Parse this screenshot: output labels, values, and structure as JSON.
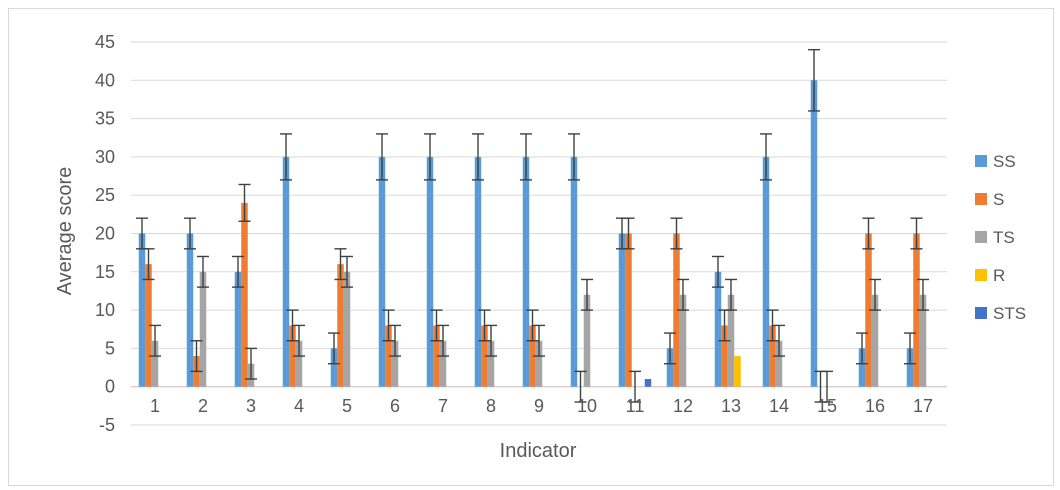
{
  "chart_data": {
    "type": "bar",
    "title": "",
    "xlabel": "Indicator",
    "ylabel": "Average score",
    "categories": [
      "1",
      "2",
      "3",
      "4",
      "5",
      "6",
      "7",
      "8",
      "9",
      "10",
      "11",
      "12",
      "13",
      "14",
      "15",
      "16",
      "17"
    ],
    "ylim": [
      -5,
      45
    ],
    "yticks": [
      -5,
      0,
      5,
      10,
      15,
      20,
      25,
      30,
      35,
      40,
      45
    ],
    "grid": true,
    "legend_position": "right",
    "error_bars": true,
    "series": [
      {
        "name": "SS",
        "color": "#5b9bd5",
        "values": [
          20,
          20,
          15,
          30,
          5,
          30,
          30,
          30,
          30,
          30,
          20,
          5,
          15,
          30,
          40,
          5,
          5
        ]
      },
      {
        "name": "S",
        "color": "#ed7d31",
        "values": [
          16,
          4,
          24,
          8,
          16,
          8,
          8,
          8,
          8,
          0,
          20,
          20,
          8,
          8,
          0,
          20,
          20
        ]
      },
      {
        "name": "TS",
        "color": "#a5a5a5",
        "values": [
          6,
          15,
          3,
          6,
          15,
          6,
          6,
          6,
          6,
          12,
          0,
          12,
          12,
          6,
          0,
          12,
          12
        ]
      },
      {
        "name": "R",
        "color": "#ffc000",
        "values": [
          0,
          0,
          0,
          0,
          0,
          0,
          0,
          0,
          0,
          0,
          0,
          0,
          4,
          0,
          0,
          0,
          0
        ]
      },
      {
        "name": "STS",
        "color": "#4472c4",
        "values": [
          0,
          0,
          0,
          0,
          0,
          0,
          0,
          0,
          0,
          0,
          1,
          0,
          0,
          0,
          0,
          0,
          0
        ]
      }
    ]
  }
}
